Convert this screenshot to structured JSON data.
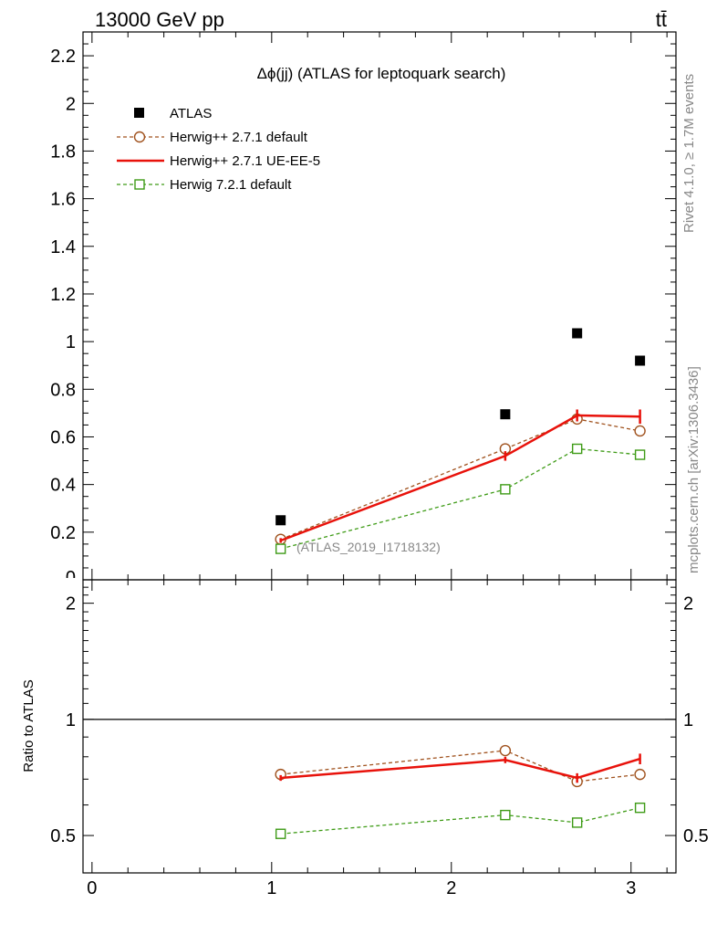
{
  "header": {
    "left": "13000 GeV pp",
    "right": "tt̄"
  },
  "side_text": {
    "rivet": "Rivet 4.1.0, ≥ 1.7M events",
    "mcplots": "mcplots.cern.ch [arXiv:1306.3436]"
  },
  "chart_data": {
    "type": "line",
    "title": "Δϕ(jj) (ATLAS for leptoquark search)",
    "analysis_tag": "(ATLAS_2019_I1718132)",
    "xlim": [
      -0.05,
      3.25
    ],
    "main_panel": {
      "ylim": [
        0,
        2.3
      ],
      "yticks": [
        0,
        0.2,
        0.4,
        0.6,
        0.8,
        1,
        1.2,
        1.4,
        1.6,
        1.8,
        2,
        2.2
      ],
      "ytick_labels": [
        "0",
        "0.2",
        "0.4",
        "0.6",
        "0.8",
        "1",
        "1.2",
        "1.4",
        "1.6",
        "1.8",
        "2",
        "2.2"
      ]
    },
    "ratio_panel": {
      "ylabel": "Ratio to ATLAS",
      "ylim": [
        0.4,
        2.3
      ],
      "yticks": [
        0.5,
        1,
        2
      ],
      "ytick_labels": [
        "0.5",
        "1",
        "2"
      ],
      "reference_line": 1
    },
    "xticks": [
      0,
      1,
      2,
      3
    ],
    "xtick_labels": [
      "0",
      "1",
      "2",
      "3"
    ],
    "x": [
      1.05,
      2.3,
      2.7,
      3.05
    ],
    "series": [
      {
        "name": "ATLAS",
        "style": "data",
        "color": "#000000",
        "values": [
          0.25,
          0.695,
          1.035,
          0.92
        ]
      },
      {
        "name": "Herwig++ 2.7.1 default",
        "style": "circle-dashed",
        "color": "#a0521e",
        "values": [
          0.17,
          0.55,
          0.675,
          0.625
        ],
        "ratio": [
          0.72,
          0.83,
          0.69,
          0.72
        ]
      },
      {
        "name": "Herwig++ 2.7.1 UE-EE-5",
        "style": "solid",
        "color": "#e8120b",
        "values": [
          0.165,
          0.52,
          0.69,
          0.685
        ],
        "errors": [
          0.01,
          0.02,
          0.025,
          0.03
        ],
        "ratio": [
          0.705,
          0.785,
          0.705,
          0.79
        ],
        "ratio_errors": [
          0.012,
          0.015,
          0.02,
          0.025
        ]
      },
      {
        "name": "Herwig 7.2.1 default",
        "style": "square-dashed",
        "color": "#3e9b16",
        "values": [
          0.13,
          0.38,
          0.55,
          0.525
        ],
        "ratio": [
          0.505,
          0.565,
          0.54,
          0.59
        ]
      }
    ]
  }
}
